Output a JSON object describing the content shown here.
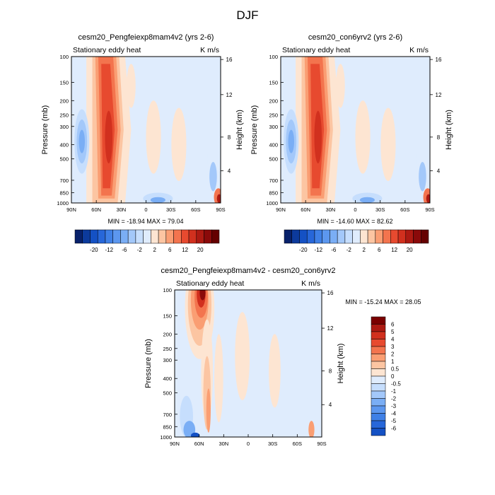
{
  "title": "DJF",
  "panel_labels": {
    "left": "Stationary eddy heat",
    "units": "K m/s"
  },
  "chart_data": [
    {
      "type": "heatmap",
      "title": "cesm20_Pengfeiexp8mam4v2 (yrs 2-6)",
      "xlabel": "",
      "ylabel": "Pressure (mb)",
      "y2label": "Height (km)",
      "xticks": [
        "90N",
        "60N",
        "30N",
        "0",
        "30S",
        "60S",
        "90S"
      ],
      "yticks": [
        "100",
        "150",
        "200",
        "250",
        "300",
        "400",
        "500",
        "700",
        "850",
        "1000"
      ],
      "y2ticks": [
        "16",
        "12",
        "8",
        "4"
      ],
      "stats": "MIN = -18.94   MAX =  79.04",
      "colorbar": {
        "labels": [
          "-20",
          "-12",
          "-6",
          "-2",
          "2",
          "6",
          "12",
          "20"
        ],
        "levels": [
          -28,
          -24,
          -20,
          -16,
          -12,
          -8,
          -6,
          -4,
          -2,
          2,
          4,
          6,
          8,
          12,
          16,
          20,
          24,
          28
        ],
        "colors": [
          "#08216b",
          "#0c3a9c",
          "#1451c4",
          "#2767d9",
          "#3f80e6",
          "#5c97ef",
          "#7aaef5",
          "#a3c8fa",
          "#c6defd",
          "#dfecfd",
          "#fde5d2",
          "#fcc5a2",
          "#fa9e73",
          "#f3744e",
          "#e74a2f",
          "#d1301e",
          "#ad1a12",
          "#8a0a0a",
          "#650000"
        ]
      },
      "stats_text": "MIN = -18.94   MAX =  79.04"
    },
    {
      "type": "heatmap",
      "title": "cesm20_con6yrv2 (yrs 2-6)",
      "xlabel": "",
      "ylabel": "Pressure (mb)",
      "y2label": "Height (km)",
      "xticks": [
        "90N",
        "60N",
        "30N",
        "0",
        "30S",
        "60S",
        "90S"
      ],
      "yticks": [
        "100",
        "150",
        "200",
        "250",
        "300",
        "400",
        "500",
        "700",
        "850",
        "1000"
      ],
      "y2ticks": [
        "16",
        "12",
        "8",
        "4"
      ],
      "stats_text": "MIN = -14.60   MAX =  82.62",
      "colorbar": {
        "labels": [
          "-20",
          "-12",
          "-6",
          "-2",
          "2",
          "6",
          "12",
          "20"
        ]
      }
    },
    {
      "type": "heatmap",
      "title": "cesm20_Pengfeiexp8mam4v2 - cesm20_con6yrv2",
      "xlabel": "",
      "ylabel": "Pressure (mb)",
      "y2label": "Height (km)",
      "xticks": [
        "90N",
        "60N",
        "30N",
        "0",
        "30S",
        "60S",
        "90S"
      ],
      "yticks": [
        "100",
        "150",
        "200",
        "250",
        "300",
        "400",
        "500",
        "700",
        "850",
        "1000"
      ],
      "y2ticks": [
        "16",
        "12",
        "8",
        "4"
      ],
      "stats_text": "MIN = -15.24   MAX =  28.05",
      "colorbar": {
        "labels": [
          "6",
          "5",
          "4",
          "3",
          "2",
          "1",
          "0.5",
          "0",
          "-0.5",
          "-1",
          "-2",
          "-3",
          "-4",
          "-5",
          "-6"
        ],
        "colors": [
          "#7a0000",
          "#ad1a12",
          "#d1301e",
          "#e74a2f",
          "#f3744e",
          "#fa9e73",
          "#fcc5a2",
          "#fde5d2",
          "#dfecfd",
          "#c6defd",
          "#a3c8fa",
          "#7aaef5",
          "#5c97ef",
          "#3f80e6",
          "#2767d9",
          "#1451c4"
        ]
      }
    }
  ]
}
